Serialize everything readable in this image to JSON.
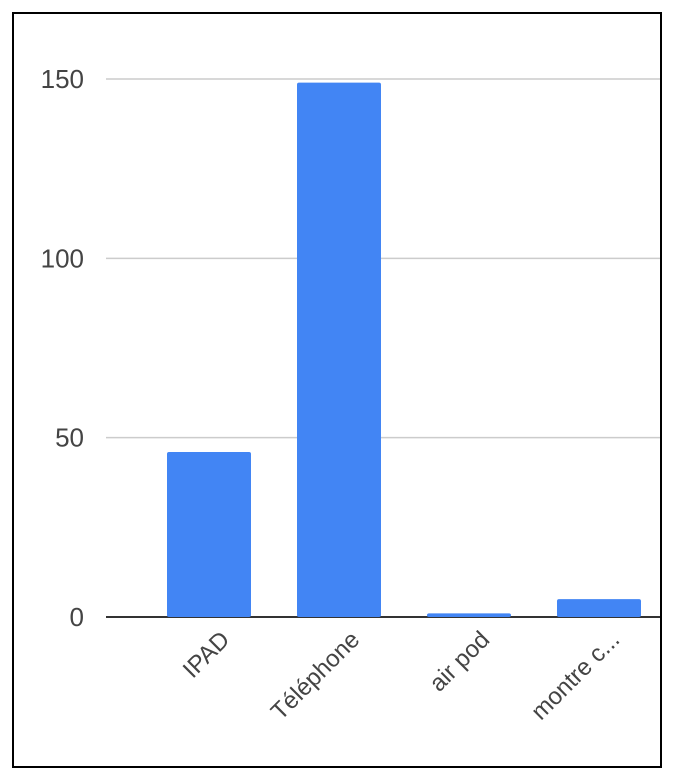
{
  "chart_data": {
    "type": "bar",
    "title": "",
    "xlabel": "",
    "ylabel": "",
    "categories": [
      "IPAD",
      "Téléphone",
      "air pod",
      "montre c..."
    ],
    "values": [
      46,
      149,
      1,
      5
    ],
    "ylim": [
      0,
      150
    ],
    "yticks": [
      0,
      50,
      100,
      150
    ],
    "grid": true,
    "legend": "none",
    "bar_color": "#4285F4",
    "grid_color": "#cccccc",
    "axis_color": "#333333"
  }
}
